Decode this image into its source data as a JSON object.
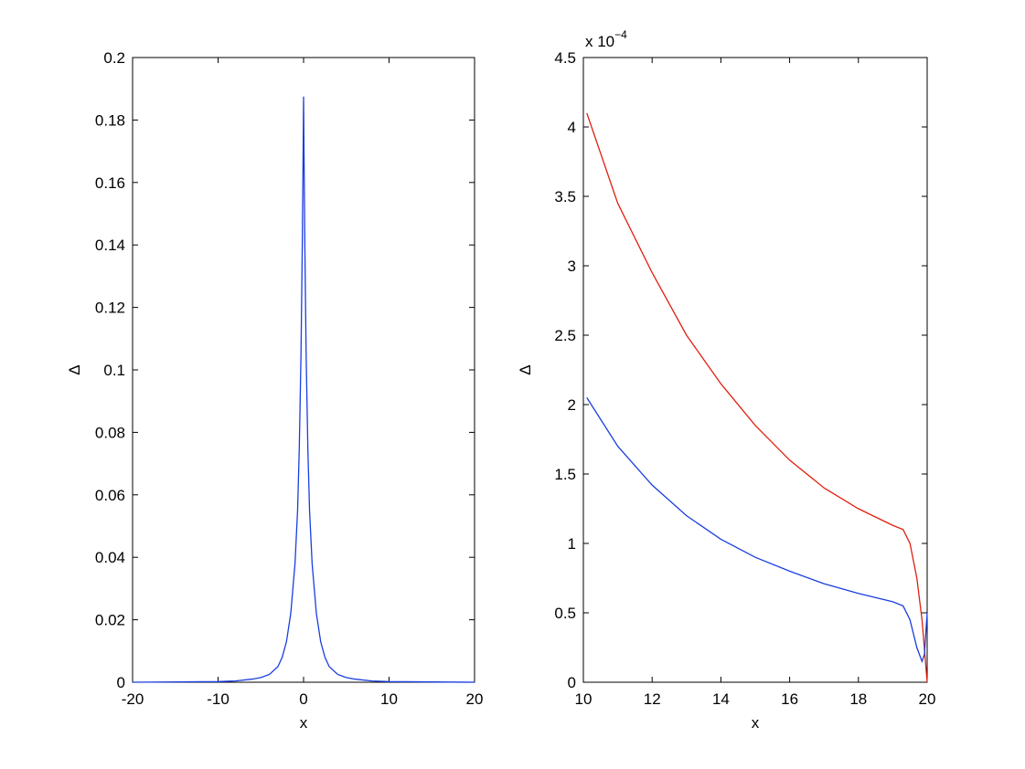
{
  "chart_data": [
    {
      "type": "line",
      "xlabel": "x",
      "ylabel": "Δ",
      "xlim": [
        -20,
        20
      ],
      "xticks": [
        -20,
        -10,
        0,
        10,
        20
      ],
      "ylim": [
        0,
        0.2
      ],
      "yticks": [
        0,
        0.02,
        0.04,
        0.06,
        0.08,
        0.1,
        0.12,
        0.14,
        0.16,
        0.18,
        0.2
      ],
      "series": [
        {
          "color": "#1a3ee0",
          "x": [
            -20,
            -10,
            -8,
            -6,
            -5,
            -4,
            -3,
            -2.5,
            -2,
            -1.5,
            -1,
            -0.7,
            -0.5,
            -0.3,
            -0.15,
            -0.05,
            0,
            0.05,
            0.15,
            0.3,
            0.5,
            0.7,
            1,
            1.5,
            2,
            2.5,
            3,
            4,
            5,
            6,
            8,
            10,
            20
          ],
          "values": [
            0,
            0.0002,
            0.0004,
            0.001,
            0.0015,
            0.0025,
            0.005,
            0.008,
            0.013,
            0.022,
            0.038,
            0.055,
            0.075,
            0.105,
            0.14,
            0.17,
            0.1875,
            0.17,
            0.14,
            0.105,
            0.075,
            0.055,
            0.038,
            0.022,
            0.013,
            0.008,
            0.005,
            0.0025,
            0.0015,
            0.001,
            0.0004,
            0.0002,
            0
          ]
        }
      ]
    },
    {
      "type": "line",
      "xlabel": "x",
      "ylabel": "Δ",
      "multiplier": "x 10",
      "exponent": "−4",
      "xlim": [
        10,
        20
      ],
      "xticks": [
        10,
        12,
        14,
        16,
        18,
        20
      ],
      "ylim": [
        0,
        4.5
      ],
      "yticks": [
        0,
        0.5,
        1,
        1.5,
        2,
        2.5,
        3,
        3.5,
        4,
        4.5
      ],
      "series": [
        {
          "color": "#e02010",
          "x": [
            10.1,
            11,
            12,
            13,
            14,
            15,
            16,
            17,
            18,
            19,
            19.3,
            19.5,
            19.7,
            19.85,
            20
          ],
          "values": [
            4.1,
            3.45,
            2.95,
            2.5,
            2.15,
            1.85,
            1.6,
            1.4,
            1.25,
            1.13,
            1.1,
            1.0,
            0.75,
            0.45,
            0
          ]
        },
        {
          "color": "#1a3ee0",
          "x": [
            10.1,
            11,
            12,
            13,
            14,
            15,
            16,
            17,
            18,
            19,
            19.3,
            19.5,
            19.7,
            19.85,
            19.92,
            20
          ],
          "values": [
            2.05,
            1.7,
            1.42,
            1.2,
            1.03,
            0.9,
            0.8,
            0.71,
            0.64,
            0.58,
            0.55,
            0.45,
            0.25,
            0.15,
            0.2,
            0.5
          ]
        }
      ]
    }
  ]
}
